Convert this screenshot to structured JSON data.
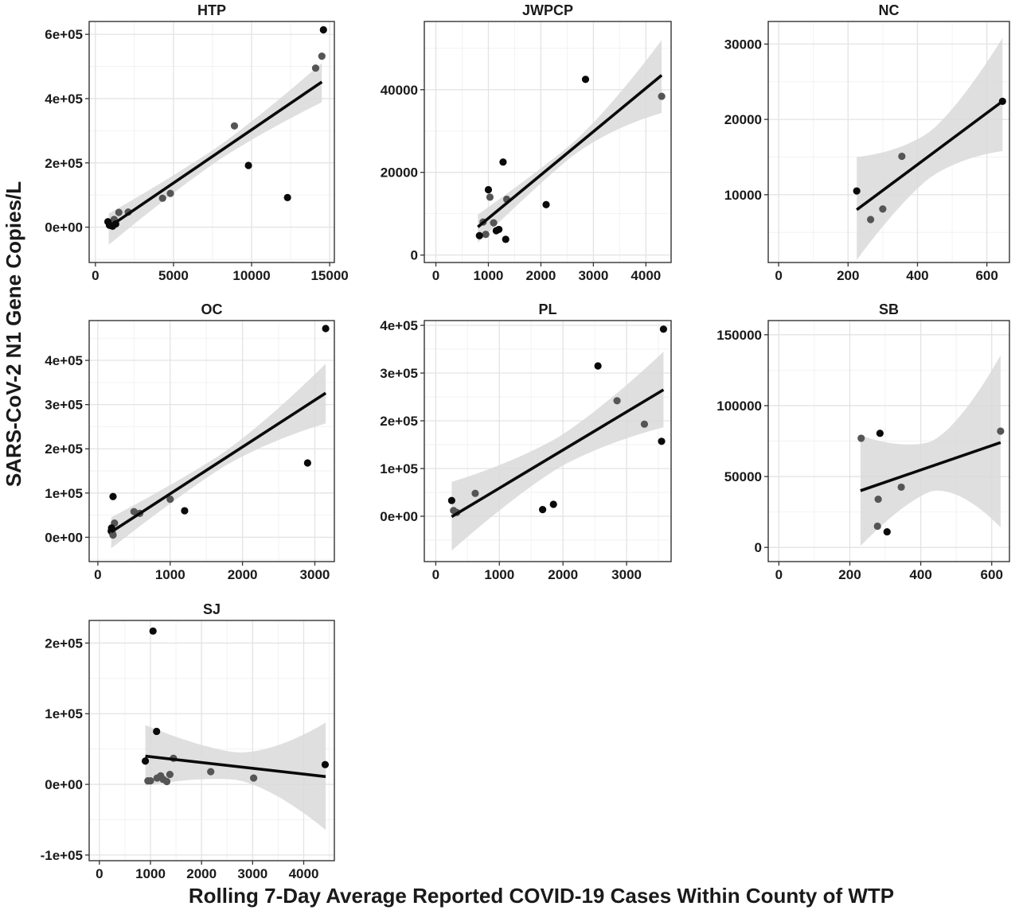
{
  "figure": {
    "xlabel": "Rolling 7-Day Average Reported COVID-19 Cases Within County of WTP",
    "ylabel": "SARS-CoV-2 N1 Gene Copies/L"
  },
  "colors": {
    "panel_border": "#333333",
    "grid_major": "#e3e3e3",
    "grid_minor": "#f2f2f2",
    "ribbon": "#d9d9d9",
    "fit_line": "#0a0a0a",
    "point_dark": "#0a0a0a",
    "point_gray": "#555555"
  },
  "chart_data": [
    {
      "type": "scatter",
      "title": "HTP",
      "xlim": [
        -400,
        15300
      ],
      "ylim": [
        -110000,
        640000
      ],
      "xticks": [
        0,
        5000,
        10000,
        15000
      ],
      "xtick_labels": [
        "0",
        "5000",
        "10000",
        "15000"
      ],
      "yticks": [
        0,
        200000,
        400000,
        600000
      ],
      "ytick_labels": [
        "0e+00",
        "2e+05",
        "4e+05",
        "6e+05"
      ],
      "fit": {
        "x": [
          850,
          14500
        ],
        "y": [
          0,
          452000
        ]
      },
      "ribbon": {
        "x": [
          850,
          14500
        ],
        "upper": [
          42000,
          525000
        ],
        "lower": [
          -55000,
          382000
        ]
      },
      "points": [
        {
          "x": 14600,
          "y": 614000,
          "tone": "dark"
        },
        {
          "x": 14500,
          "y": 532000,
          "tone": "gray"
        },
        {
          "x": 14100,
          "y": 495000,
          "tone": "gray"
        },
        {
          "x": 8900,
          "y": 315000,
          "tone": "gray"
        },
        {
          "x": 9800,
          "y": 192000,
          "tone": "dark"
        },
        {
          "x": 12300,
          "y": 92000,
          "tone": "dark"
        },
        {
          "x": 4800,
          "y": 105000,
          "tone": "gray"
        },
        {
          "x": 4300,
          "y": 90000,
          "tone": "gray"
        },
        {
          "x": 2100,
          "y": 47000,
          "tone": "gray"
        },
        {
          "x": 1500,
          "y": 46000,
          "tone": "gray"
        },
        {
          "x": 1200,
          "y": 24000,
          "tone": "gray"
        },
        {
          "x": 1000,
          "y": 12000,
          "tone": "gray"
        },
        {
          "x": 800,
          "y": 17000,
          "tone": "dark"
        },
        {
          "x": 900,
          "y": 6000,
          "tone": "dark"
        },
        {
          "x": 1300,
          "y": 10000,
          "tone": "dark"
        },
        {
          "x": 1100,
          "y": 3000,
          "tone": "dark"
        }
      ]
    },
    {
      "type": "scatter",
      "title": "JWPCP",
      "xlim": [
        -220,
        4480
      ],
      "ylim": [
        -1800,
        56500
      ],
      "xticks": [
        0,
        1000,
        2000,
        3000,
        4000
      ],
      "xtick_labels": [
        "0",
        "1000",
        "2000",
        "3000",
        "4000"
      ],
      "yticks": [
        0,
        20000,
        40000
      ],
      "ytick_labels": [
        "0",
        "20000",
        "40000"
      ],
      "fit": {
        "x": [
          800,
          4300
        ],
        "y": [
          6800,
          43500
        ]
      },
      "ribbon": {
        "x": [
          800,
          4300
        ],
        "upper": [
          9800,
          56500
        ],
        "lower": [
          3000,
          30000
        ]
      },
      "points": [
        {
          "x": 2850,
          "y": 42500,
          "tone": "dark"
        },
        {
          "x": 4300,
          "y": 38400,
          "tone": "gray"
        },
        {
          "x": 1280,
          "y": 22500,
          "tone": "dark"
        },
        {
          "x": 1000,
          "y": 15800,
          "tone": "dark"
        },
        {
          "x": 1030,
          "y": 14000,
          "tone": "gray"
        },
        {
          "x": 1350,
          "y": 13500,
          "tone": "gray"
        },
        {
          "x": 2100,
          "y": 12200,
          "tone": "dark"
        },
        {
          "x": 900,
          "y": 8000,
          "tone": "gray"
        },
        {
          "x": 1100,
          "y": 7800,
          "tone": "gray"
        },
        {
          "x": 1200,
          "y": 6200,
          "tone": "dark"
        },
        {
          "x": 1150,
          "y": 5900,
          "tone": "dark"
        },
        {
          "x": 950,
          "y": 5000,
          "tone": "gray"
        },
        {
          "x": 830,
          "y": 4700,
          "tone": "dark"
        },
        {
          "x": 1330,
          "y": 3800,
          "tone": "dark"
        }
      ]
    },
    {
      "type": "scatter",
      "title": "NC",
      "xlim": [
        -30,
        665
      ],
      "ylim": [
        1000,
        33000
      ],
      "xticks": [
        0,
        200,
        400,
        600
      ],
      "xtick_labels": [
        "0",
        "200",
        "400",
        "600"
      ],
      "yticks": [
        10000,
        20000,
        30000
      ],
      "ytick_labels": [
        "10000",
        "20000",
        "30000"
      ],
      "fit": {
        "x": [
          225,
          645
        ],
        "y": [
          8000,
          22400
        ]
      },
      "ribbon": {
        "x": [
          225,
          645
        ],
        "upper": [
          15000,
          32000
        ],
        "lower": [
          1300,
          15800
        ]
      },
      "points": [
        {
          "x": 645,
          "y": 22400,
          "tone": "dark"
        },
        {
          "x": 355,
          "y": 15100,
          "tone": "gray"
        },
        {
          "x": 225,
          "y": 10500,
          "tone": "dark"
        },
        {
          "x": 300,
          "y": 8100,
          "tone": "gray"
        },
        {
          "x": 265,
          "y": 6700,
          "tone": "gray"
        }
      ]
    },
    {
      "type": "scatter",
      "title": "OC",
      "xlim": [
        -120,
        3270
      ],
      "ylim": [
        -55000,
        490000
      ],
      "xticks": [
        0,
        1000,
        2000,
        3000
      ],
      "xtick_labels": [
        "0",
        "1000",
        "2000",
        "3000"
      ],
      "yticks": [
        0,
        100000,
        200000,
        300000,
        400000
      ],
      "ytick_labels": [
        "0e+00",
        "1e+05",
        "2e+05",
        "3e+05",
        "4e+05"
      ],
      "fit": {
        "x": [
          185,
          3150
        ],
        "y": [
          12000,
          326000
        ]
      },
      "ribbon": {
        "x": [
          185,
          3150
        ],
        "upper": [
          45000,
          420000
        ],
        "lower": [
          -25000,
          232000
        ]
      },
      "points": [
        {
          "x": 3150,
          "y": 472000,
          "tone": "dark"
        },
        {
          "x": 2900,
          "y": 168000,
          "tone": "dark"
        },
        {
          "x": 210,
          "y": 92000,
          "tone": "dark"
        },
        {
          "x": 1000,
          "y": 86000,
          "tone": "gray"
        },
        {
          "x": 1200,
          "y": 60000,
          "tone": "dark"
        },
        {
          "x": 500,
          "y": 58000,
          "tone": "gray"
        },
        {
          "x": 580,
          "y": 54000,
          "tone": "gray"
        },
        {
          "x": 230,
          "y": 32000,
          "tone": "gray"
        },
        {
          "x": 190,
          "y": 21000,
          "tone": "dark"
        },
        {
          "x": 200,
          "y": 10000,
          "tone": "gray"
        },
        {
          "x": 185,
          "y": 14000,
          "tone": "dark"
        },
        {
          "x": 210,
          "y": 5000,
          "tone": "gray"
        }
      ]
    },
    {
      "type": "scatter",
      "title": "PL",
      "xlim": [
        -180,
        3700
      ],
      "ylim": [
        -95000,
        410000
      ],
      "xticks": [
        0,
        1000,
        2000,
        3000
      ],
      "xtick_labels": [
        "0",
        "1000",
        "2000",
        "3000"
      ],
      "yticks": [
        0,
        100000,
        200000,
        300000,
        400000
      ],
      "ytick_labels": [
        "0e+00",
        "1e+05",
        "2e+05",
        "3e+05",
        "4e+05"
      ],
      "fit": {
        "x": [
          250,
          3580
        ],
        "y": [
          -1000,
          265000
        ]
      },
      "ribbon": {
        "x": [
          250,
          3580
        ],
        "upper": [
          72000,
          350000
        ],
        "lower": [
          -72000,
          180000
        ]
      },
      "points": [
        {
          "x": 3580,
          "y": 392000,
          "tone": "dark"
        },
        {
          "x": 2550,
          "y": 315000,
          "tone": "dark"
        },
        {
          "x": 2850,
          "y": 242000,
          "tone": "gray"
        },
        {
          "x": 3280,
          "y": 193000,
          "tone": "gray"
        },
        {
          "x": 3550,
          "y": 157000,
          "tone": "dark"
        },
        {
          "x": 620,
          "y": 48000,
          "tone": "gray"
        },
        {
          "x": 250,
          "y": 33000,
          "tone": "dark"
        },
        {
          "x": 1850,
          "y": 25000,
          "tone": "dark"
        },
        {
          "x": 1680,
          "y": 14000,
          "tone": "dark"
        },
        {
          "x": 280,
          "y": 12000,
          "tone": "gray"
        },
        {
          "x": 330,
          "y": 8000,
          "tone": "gray"
        }
      ]
    },
    {
      "type": "scatter",
      "title": "SB",
      "xlim": [
        -30,
        650
      ],
      "ylim": [
        -10000,
        160000
      ],
      "xticks": [
        0,
        200,
        400,
        600
      ],
      "xtick_labels": [
        "0",
        "200",
        "400",
        "600"
      ],
      "yticks": [
        0,
        50000,
        100000,
        150000
      ],
      "ytick_labels": [
        "0",
        "50000",
        "100000",
        "150000"
      ],
      "fit": {
        "x": [
          230,
          625
        ],
        "y": [
          40000,
          74000
        ]
      },
      "ribbon": {
        "x": [
          230,
          625
        ],
        "upper": [
          79000,
          154000
        ],
        "lower": [
          1000,
          -3000
        ]
      },
      "points": [
        {
          "x": 625,
          "y": 82000,
          "tone": "gray"
        },
        {
          "x": 285,
          "y": 80500,
          "tone": "dark"
        },
        {
          "x": 232,
          "y": 77000,
          "tone": "gray"
        },
        {
          "x": 345,
          "y": 42500,
          "tone": "gray"
        },
        {
          "x": 280,
          "y": 34000,
          "tone": "gray"
        },
        {
          "x": 278,
          "y": 15000,
          "tone": "gray"
        },
        {
          "x": 305,
          "y": 11000,
          "tone": "dark"
        }
      ]
    },
    {
      "type": "scatter",
      "title": "SJ",
      "xlim": [
        -200,
        4600
      ],
      "ylim": [
        -108000,
        232000
      ],
      "xticks": [
        0,
        1000,
        2000,
        3000,
        4000
      ],
      "xtick_labels": [
        "0",
        "1000",
        "2000",
        "3000",
        "4000"
      ],
      "yticks": [
        -100000,
        0,
        100000,
        200000
      ],
      "ytick_labels": [
        "-1e+05",
        "0e+00",
        "1e+05",
        "2e+05"
      ],
      "fit": {
        "x": [
          900,
          4430
        ],
        "y": [
          40000,
          11000
        ]
      },
      "ribbon": {
        "x": [
          900,
          4430
        ],
        "upper": [
          84000,
          114000
        ],
        "lower": [
          -2000,
          -92000
        ]
      },
      "points": [
        {
          "x": 1050,
          "y": 217000,
          "tone": "dark"
        },
        {
          "x": 1120,
          "y": 75000,
          "tone": "dark"
        },
        {
          "x": 1450,
          "y": 37000,
          "tone": "gray"
        },
        {
          "x": 900,
          "y": 33000,
          "tone": "dark"
        },
        {
          "x": 4420,
          "y": 28000,
          "tone": "dark"
        },
        {
          "x": 2180,
          "y": 18000,
          "tone": "gray"
        },
        {
          "x": 1380,
          "y": 14000,
          "tone": "gray"
        },
        {
          "x": 1200,
          "y": 12000,
          "tone": "gray"
        },
        {
          "x": 1130,
          "y": 9000,
          "tone": "gray"
        },
        {
          "x": 3020,
          "y": 9000,
          "tone": "gray"
        },
        {
          "x": 1250,
          "y": 7000,
          "tone": "gray"
        },
        {
          "x": 950,
          "y": 5000,
          "tone": "gray"
        },
        {
          "x": 1000,
          "y": 5000,
          "tone": "gray"
        },
        {
          "x": 1320,
          "y": 4000,
          "tone": "gray"
        }
      ]
    }
  ]
}
